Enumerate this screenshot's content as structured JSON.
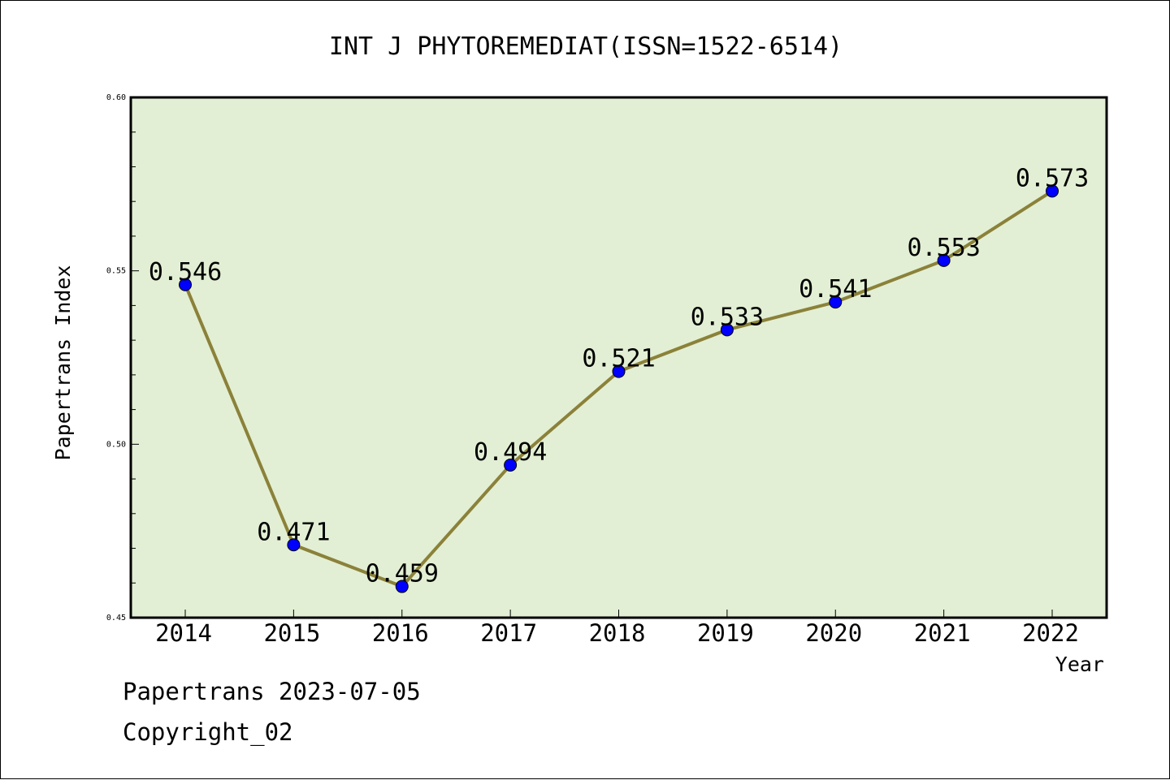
{
  "chart_data": {
    "type": "line",
    "title": "INT J PHYTOREMEDIAT(ISSN=1522-6514)",
    "xlabel": "Year",
    "ylabel": "Papertrans Index",
    "categories": [
      "2014",
      "2015",
      "2016",
      "2017",
      "2018",
      "2019",
      "2020",
      "2021",
      "2022"
    ],
    "series": [
      {
        "values": [
          0.546,
          0.471,
          0.459,
          0.494,
          0.521,
          0.533,
          0.541,
          0.553,
          0.573
        ],
        "labels": [
          "0.546",
          "0.471",
          "0.459",
          "0.494",
          "0.521",
          "0.533",
          "0.541",
          "0.553",
          "0.573"
        ]
      }
    ],
    "ylim": [
      0.45,
      0.6
    ],
    "yticks": [
      "0.45",
      "0.50",
      "0.55",
      "0.60"
    ],
    "yminor_step": 0.01,
    "grid": false,
    "colors": {
      "plot_background": "#e2efd4",
      "line": "#8b8139",
      "marker": "#0000ff"
    }
  },
  "footer": {
    "line1": "Papertrans 2023-07-05",
    "line2": "Copyright_02"
  }
}
